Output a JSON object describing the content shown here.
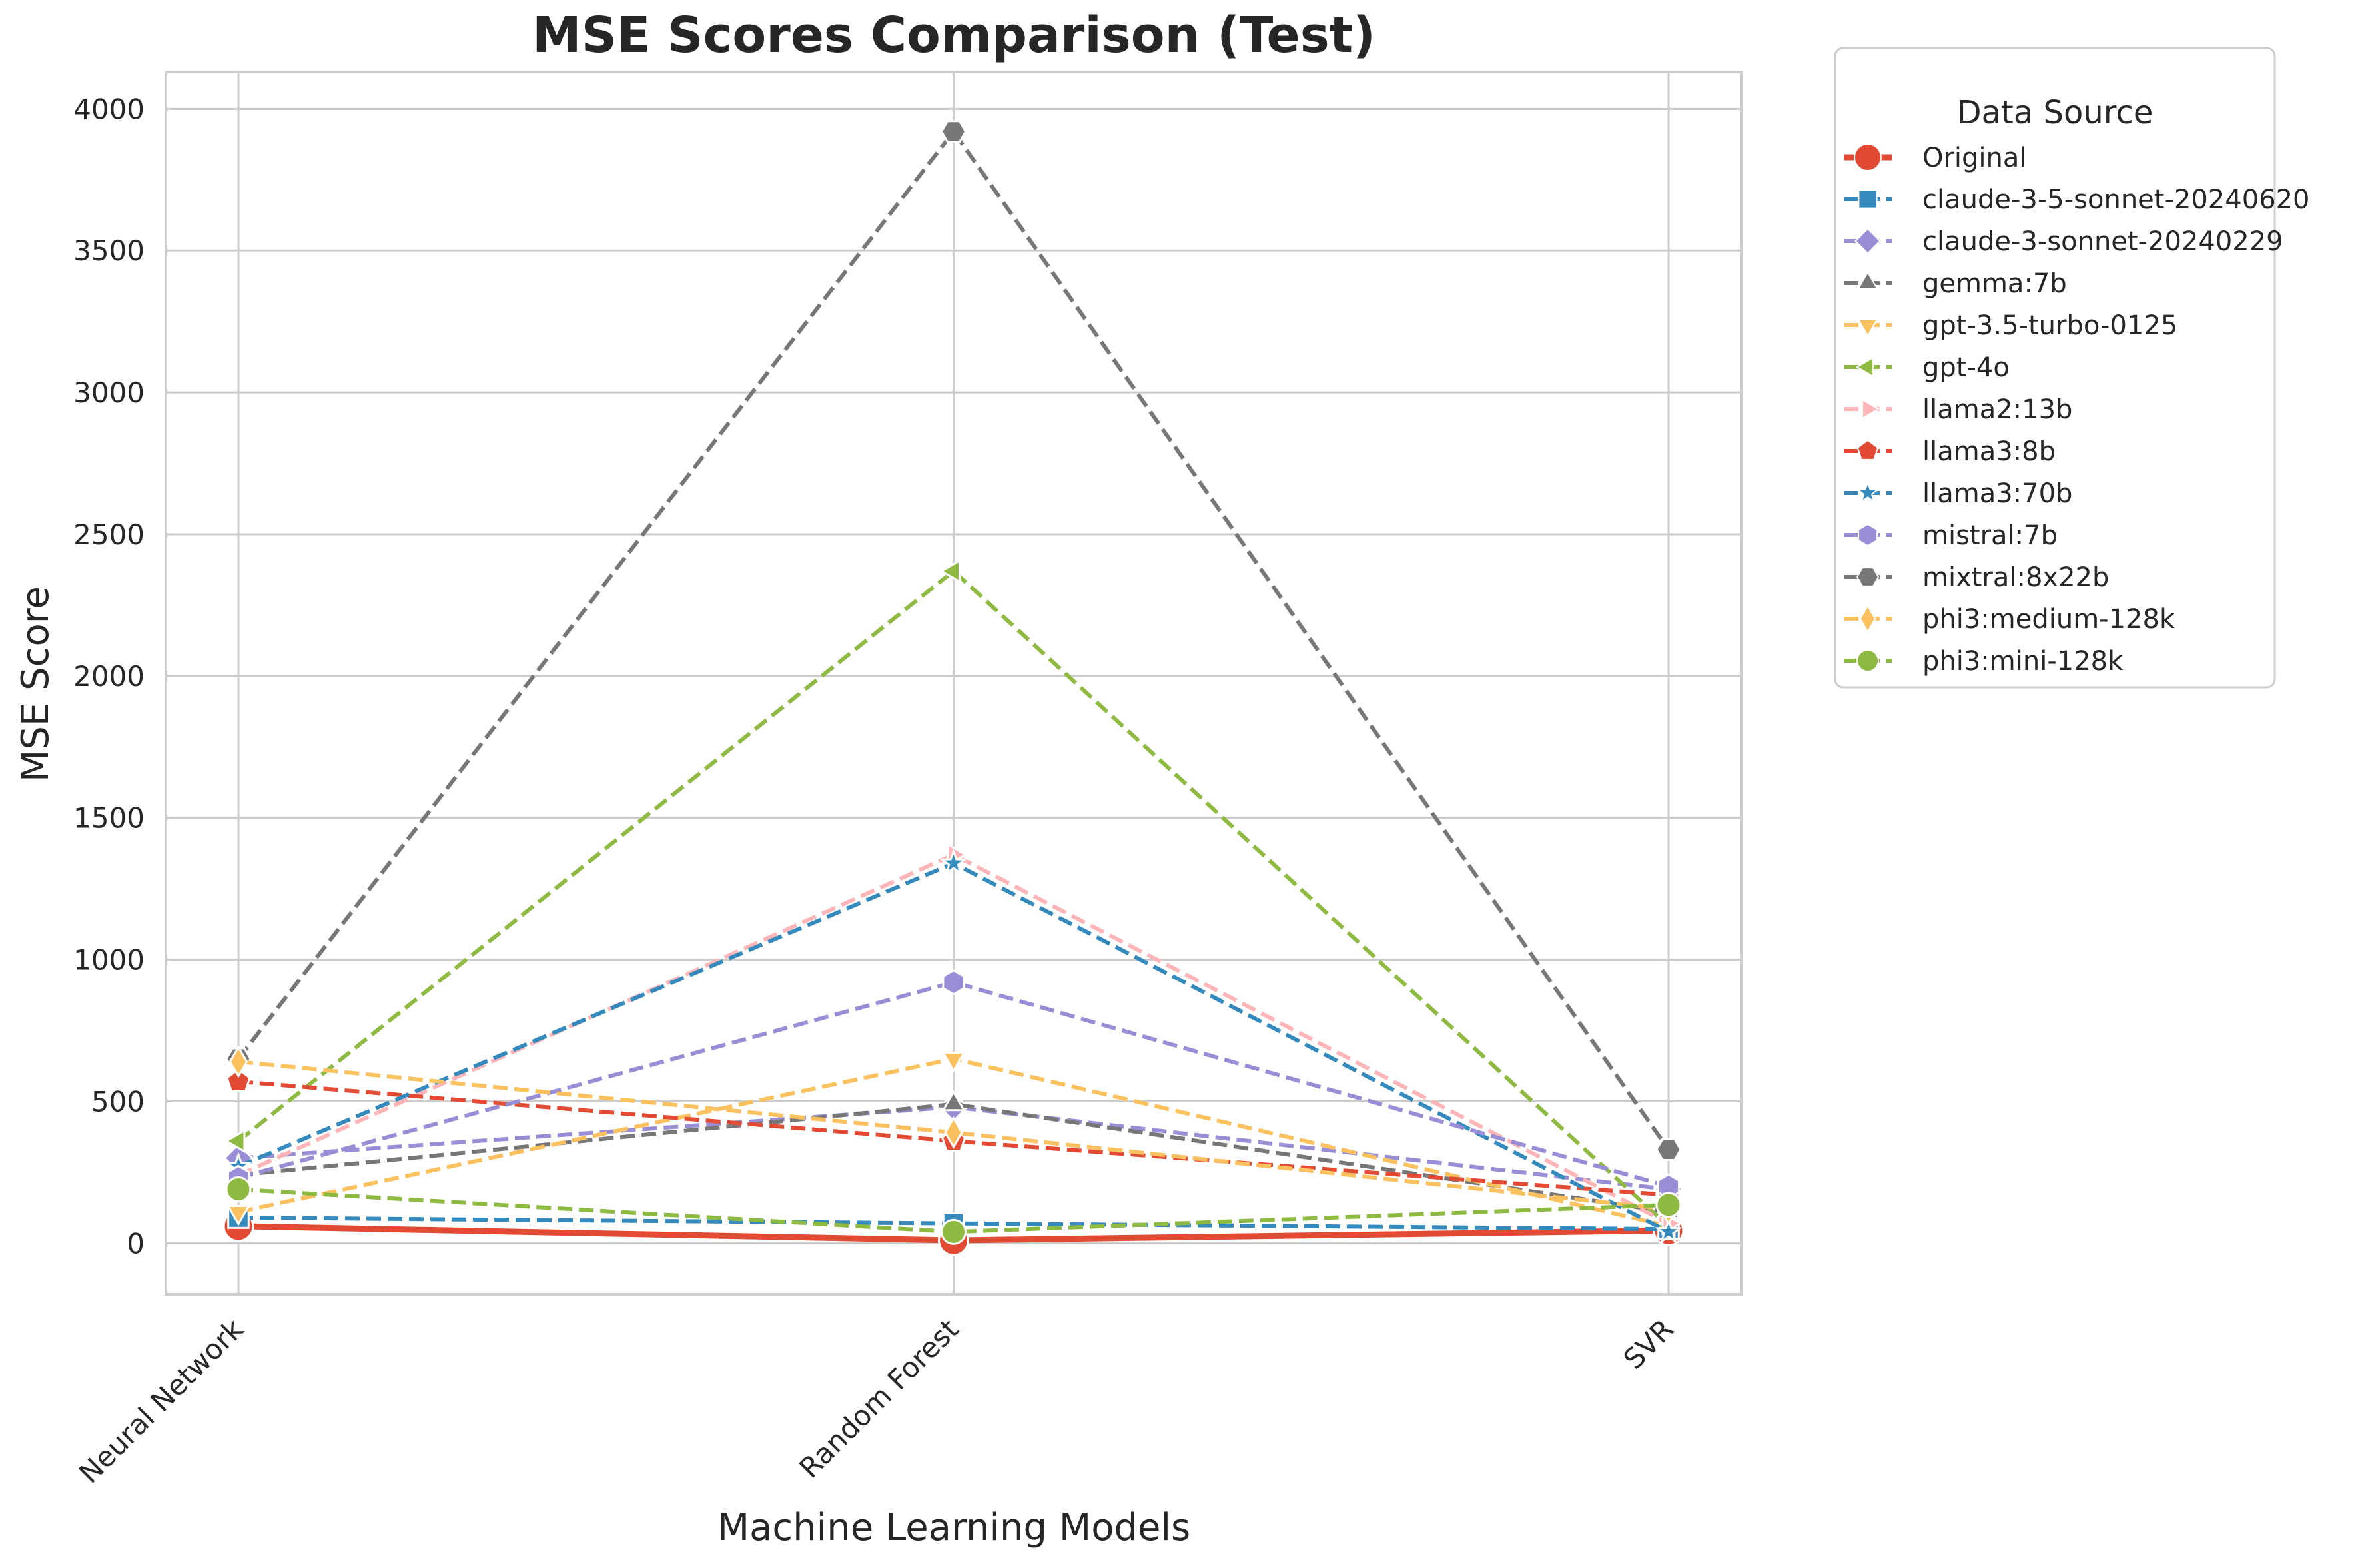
{
  "chart_data": {
    "type": "line",
    "title": "MSE Scores Comparison (Test)",
    "xlabel": "Machine Learning Models",
    "ylabel": "MSE Score",
    "categories": [
      "Neural Network",
      "Random Forest",
      "SVR"
    ],
    "ylim": [
      -180,
      4130
    ],
    "yticks": [
      0,
      500,
      1000,
      1500,
      2000,
      2500,
      3000,
      3500,
      4000
    ],
    "grid": true,
    "legend": {
      "title": "Data Source",
      "placement": "outside-top-right"
    },
    "series": [
      {
        "name": "Original",
        "values": [
          60,
          10,
          45
        ],
        "color": "#e24a33",
        "marker": "circle",
        "dash": "solid"
      },
      {
        "name": "claude-3-5-sonnet-20240620",
        "values": [
          90,
          70,
          50
        ],
        "color": "#348abd",
        "marker": "square",
        "dash": "dashed"
      },
      {
        "name": "claude-3-sonnet-20240229",
        "values": [
          300,
          480,
          190
        ],
        "color": "#988ed5",
        "marker": "diamond",
        "dash": "dashed"
      },
      {
        "name": "gemma:7b",
        "values": [
          240,
          490,
          110
        ],
        "color": "#777777",
        "marker": "triangle-up",
        "dash": "dashed"
      },
      {
        "name": "gpt-3.5-turbo-0125",
        "values": [
          110,
          650,
          60
        ],
        "color": "#fbc15e",
        "marker": "triangle-down",
        "dash": "dashed"
      },
      {
        "name": "gpt-4o",
        "values": [
          360,
          2370,
          60
        ],
        "color": "#8eba42",
        "marker": "triangle-left",
        "dash": "dashed"
      },
      {
        "name": "llama2:13b",
        "values": [
          240,
          1370,
          70
        ],
        "color": "#ffb5b8",
        "marker": "triangle-right",
        "dash": "dashed"
      },
      {
        "name": "llama3:8b",
        "values": [
          570,
          360,
          170
        ],
        "color": "#e24a33",
        "marker": "pentagon",
        "dash": "dashed"
      },
      {
        "name": "llama3:70b",
        "values": [
          270,
          1340,
          40
        ],
        "color": "#348abd",
        "marker": "star",
        "dash": "dashed"
      },
      {
        "name": "mistral:7b",
        "values": [
          230,
          920,
          200
        ],
        "color": "#988ed5",
        "marker": "hexagon",
        "dash": "dashed"
      },
      {
        "name": "mixtral:8x22b",
        "values": [
          650,
          3920,
          330
        ],
        "color": "#777777",
        "marker": "hexagon2",
        "dash": "dashed"
      },
      {
        "name": "phi3:medium-128k",
        "values": [
          640,
          390,
          120
        ],
        "color": "#fbc15e",
        "marker": "thin-diamond",
        "dash": "dashed"
      },
      {
        "name": "phi3:mini-128k",
        "values": [
          190,
          40,
          135
        ],
        "color": "#8eba42",
        "marker": "circle",
        "dash": "dashed"
      }
    ]
  }
}
